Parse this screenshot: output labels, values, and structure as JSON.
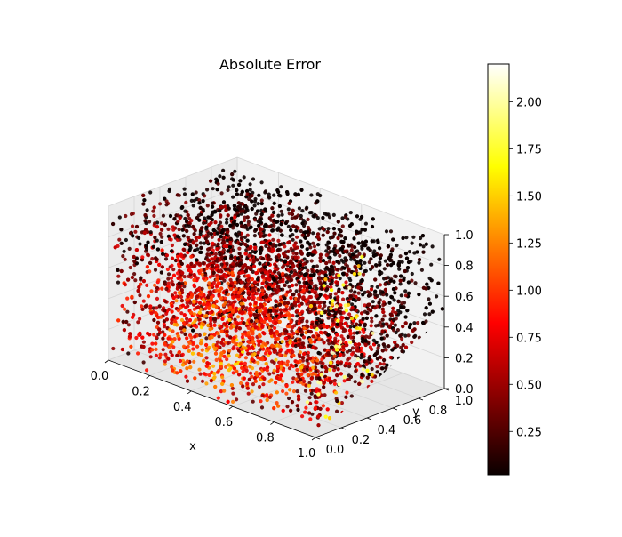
{
  "chart_data": {
    "type": "scatter",
    "projection": "3d",
    "title": "Absolute Error",
    "xlabel": "x",
    "ylabel": "y",
    "zlabel": "",
    "xlim": [
      0.0,
      1.0
    ],
    "ylim": [
      0.0,
      1.0
    ],
    "zlim": [
      0.0,
      1.0
    ],
    "x_ticks": [
      "0.0",
      "0.2",
      "0.4",
      "0.6",
      "0.8",
      "1.0"
    ],
    "y_ticks": [
      "0.0",
      "0.2",
      "0.4",
      "0.6",
      "0.8",
      "1.0"
    ],
    "z_ticks": [
      "0.0",
      "0.2",
      "0.4",
      "0.6",
      "0.8",
      "1.0"
    ],
    "grid": true,
    "colormap": "hot",
    "colorbar": {
      "range": [
        0.02,
        2.2
      ],
      "ticks": [
        "0.25",
        "0.50",
        "0.75",
        "1.00",
        "1.25",
        "1.50",
        "1.75",
        "2.00"
      ],
      "tick_values": [
        0.25,
        0.5,
        0.75,
        1.0,
        1.25,
        1.5,
        1.75,
        2.0
      ]
    },
    "marker_colors": {
      "pane": "#f2f2f2",
      "grid": "#d6d6d6"
    },
    "points": [
      [
        0.12,
        0.85,
        0.55,
        0.35
      ],
      [
        0.25,
        0.6,
        0.7,
        0.9
      ],
      [
        0.4,
        0.3,
        0.4,
        1.2
      ],
      [
        0.55,
        0.15,
        0.2,
        1.9
      ],
      [
        0.7,
        0.1,
        0.85,
        0.6
      ],
      [
        0.85,
        0.9,
        0.3,
        0.2
      ],
      [
        0.95,
        0.2,
        0.75,
        1.6
      ],
      [
        0.33,
        0.45,
        0.95,
        0.8
      ],
      [
        0.6,
        0.7,
        0.1,
        0.4
      ],
      [
        0.05,
        0.05,
        0.5,
        0.7
      ],
      [
        0.8,
        0.35,
        0.6,
        1.05
      ],
      [
        0.45,
        0.95,
        0.45,
        0.15
      ]
    ]
  }
}
